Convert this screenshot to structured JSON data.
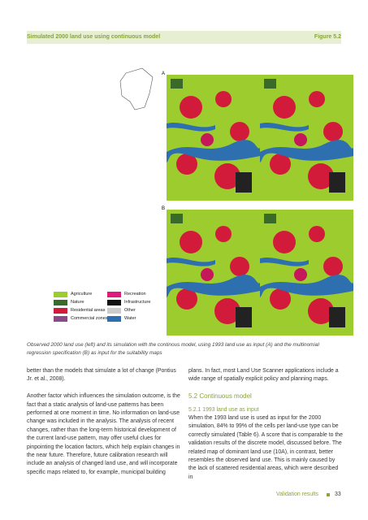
{
  "header": {
    "title": "Simulated 2000 land use using continuous model",
    "figure": "Figure 5.2"
  },
  "figure": {
    "panel_a": "A",
    "panel_b": "B",
    "legend": [
      "Agriculture",
      "Nature",
      "Residential areas",
      "Commercial zones",
      "Recreation",
      "Infrastructure",
      "Other",
      "Water"
    ],
    "caption": "Observed 2000 land use (left) and its simulation with the continous model, using 1993 land use as input (A) and the multinomial regression specification (B) as input for the suitability maps"
  },
  "body": {
    "left": [
      "better than the models that simulate a lot of change (Pontius Jr. et al., 2008).",
      "Another factor which influences the simulation outcome, is the fact that a static analysis of land-use patterns has been performed at one moment in time. No information on land-use change was included in the analysis. The analysis of recent changes, rather than the long-term historical development of the current land-use pattern, may offer useful clues for pinpointing the location factors, which help explain changes in the near future. Therefore, future calibration research will include an analysis of changed land use, and will incorporate specific maps related to, for example, municipal building"
    ],
    "right_intro": "plans. In fact, most Land Use Scanner applications include a wide range of spatially explicit policy and planning maps.",
    "heading": "5.2  Continuous model",
    "subheading": "5.2.1  1993 land use as input",
    "right_text": "When the 1993 land use is used as input for the 2000 simulation, 84% to 99% of the cells per land-use type can be correctly simulated (Table 6). A score that is comparable to the validation results of the discrete model, discussed before. The related map of dominant land use (10A), in contrast, better resembles the observed land use. This is mainly caused by the lack of scattered residential areas, which were described in"
  },
  "footer": {
    "section": "Validation results",
    "page": "33"
  }
}
